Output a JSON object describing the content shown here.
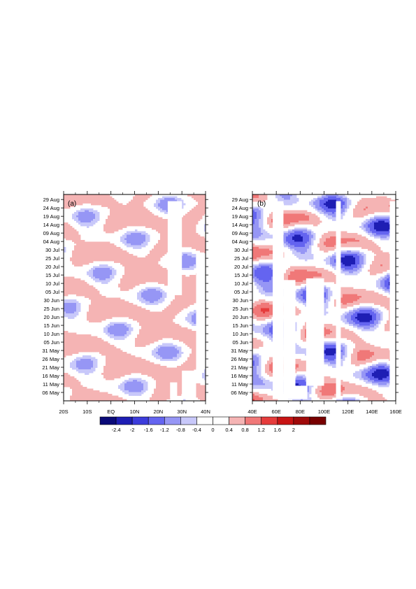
{
  "chart_data": [
    {
      "type": "heatmap",
      "panel_label": "(a)",
      "x_ticks": [
        "20S",
        "10S",
        "EQ",
        "10N",
        "20N",
        "30N",
        "40N"
      ],
      "x_tick_values": [
        -20,
        -10,
        0,
        10,
        20,
        30,
        40
      ],
      "xlim": [
        -20,
        40
      ],
      "y_ticks": [
        "29 Aug",
        "24 Aug",
        "19 Aug",
        "14 Aug",
        "09 Aug",
        "04 Aug",
        "30 Jul",
        "25 Jul",
        "20 Jul",
        "15 Jul",
        "10 Jul",
        "05 Jul",
        "30 Jun",
        "25 Jun",
        "20 Jun",
        "15 Jun",
        "10 Jun",
        "05 Jun",
        "31 May",
        "26 May",
        "21 May",
        "16 May",
        "11 May",
        "06 May"
      ],
      "ylim": [
        "01 May",
        "01 Sep"
      ],
      "missing_regions": [
        {
          "x": [
            24,
            30
          ],
          "time": [
            "03 Jul",
            "28 Aug"
          ]
        },
        {
          "x": [
            30,
            36
          ],
          "time": [
            "02 May",
            "19 May"
          ]
        },
        {
          "x": [
            36,
            40
          ],
          "time": [
            "20 May",
            "28 Jul"
          ]
        },
        {
          "x": [
            25,
            28
          ],
          "time": [
            "02 May",
            "12 May"
          ]
        }
      ],
      "grid": false,
      "colormap": "blue-white-red"
    },
    {
      "type": "heatmap",
      "panel_label": "(b)",
      "x_ticks": [
        "40E",
        "60E",
        "80E",
        "100E",
        "120E",
        "140E",
        "160E"
      ],
      "x_tick_values": [
        40,
        60,
        80,
        100,
        120,
        140,
        160
      ],
      "xlim": [
        40,
        160
      ],
      "y_ticks": [
        "29 Aug",
        "24 Aug",
        "19 Aug",
        "14 Aug",
        "09 Aug",
        "04 Aug",
        "30 Jul",
        "25 Jul",
        "20 Jul",
        "15 Jul",
        "10 Jul",
        "05 Jul",
        "30 Jun",
        "25 Jun",
        "20 Jun",
        "15 Jun",
        "10 Jun",
        "05 Jun",
        "31 May",
        "26 May",
        "21 May",
        "16 May",
        "11 May",
        "06 May"
      ],
      "ylim": [
        "01 May",
        "01 Sep"
      ],
      "missing_regions": [
        {
          "x": [
            57,
            66
          ],
          "time": [
            "02 May",
            "28 Aug"
          ]
        },
        {
          "x": [
            66,
            76
          ],
          "time": [
            "02 May",
            "12 Jul"
          ]
        },
        {
          "x": [
            76,
            86
          ],
          "time": [
            "02 May",
            "10 May"
          ]
        },
        {
          "x": [
            85,
            100
          ],
          "time": [
            "10 May",
            "13 Jul"
          ]
        },
        {
          "x": [
            110,
            114
          ],
          "time": [
            "02 May",
            "28 Aug"
          ]
        },
        {
          "x": [
            155,
            160
          ],
          "time": [
            "02 May",
            "28 Aug"
          ]
        }
      ],
      "grid": false,
      "colormap": "blue-white-red"
    }
  ],
  "colorbar": {
    "labels": [
      "-2.4",
      "-2",
      "-1.6",
      "-1.2",
      "-0.8",
      "-0.4",
      "0",
      "0.4",
      "0.8",
      "1.2",
      "1.6",
      "2"
    ],
    "bin_colors": [
      "#0a0a78",
      "#1e1eb4",
      "#3c3cdc",
      "#6464f0",
      "#9696f5",
      "#c8c8fa",
      "#ffffff",
      "#ffffff",
      "#f5b4b4",
      "#f07878",
      "#e63c3c",
      "#c81414",
      "#a00a0a",
      "#780000"
    ]
  },
  "colors": {
    "neg_weak": "#c8c8fa",
    "neg_mid": "#9696f5",
    "neg_strong": "#6464f0",
    "neg_deep": "#1e1eb4",
    "pos_weak": "#f5b4b4",
    "pos_mid": "#f07878",
    "pos_strong": "#e63c3c",
    "pos_deep": "#c81414"
  }
}
